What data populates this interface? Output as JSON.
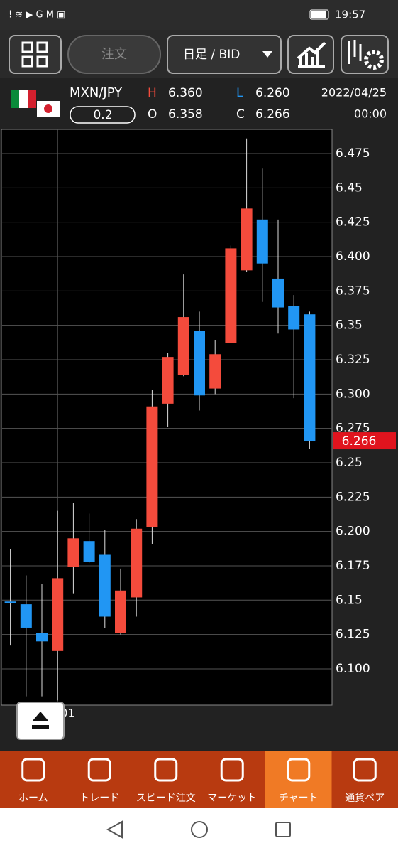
{
  "status_bar": {
    "time": "19:57"
  },
  "toolbar": {
    "order": "注文",
    "timeframe": "日足 / BID"
  },
  "header": {
    "pair": "MXN/JPY",
    "lot": "0.2",
    "high_label": "H",
    "high": "6.360",
    "low_label": "L",
    "low": "6.260",
    "open_label": "O",
    "open": "6.358",
    "close_label": "C",
    "close": "6.266",
    "date": "2022/04/25",
    "time": "00:00"
  },
  "chart_data": {
    "type": "candlestick",
    "categories": [
      null,
      null,
      null,
      "01",
      null,
      null,
      null,
      null,
      null,
      null,
      null,
      null,
      null,
      null,
      null,
      null,
      null,
      null,
      null,
      null
    ],
    "open": [
      6.149,
      6.147,
      6.126,
      6.113,
      6.174,
      6.193,
      6.183,
      6.126,
      6.152,
      6.203,
      6.293,
      6.314,
      6.346,
      6.304,
      6.337,
      6.39,
      6.427,
      6.384,
      6.364,
      6.358
    ],
    "high": [
      6.187,
      6.168,
      6.162,
      6.215,
      6.221,
      6.213,
      6.201,
      6.173,
      6.209,
      6.303,
      6.33,
      6.387,
      6.36,
      6.339,
      6.408,
      6.486,
      6.464,
      6.427,
      6.372,
      6.36
    ],
    "low": [
      6.117,
      6.08,
      6.08,
      6.077,
      6.155,
      6.177,
      6.13,
      6.125,
      6.138,
      6.191,
      6.276,
      6.313,
      6.288,
      6.3,
      6.337,
      6.389,
      6.367,
      6.344,
      6.297,
      6.26
    ],
    "close": [
      6.148,
      6.13,
      6.12,
      6.166,
      6.195,
      6.178,
      6.138,
      6.157,
      6.202,
      6.291,
      6.327,
      6.356,
      6.299,
      6.329,
      6.406,
      6.435,
      6.395,
      6.363,
      6.347,
      6.266
    ],
    "up_color": "#f44b3c",
    "down_color": "#2196f3",
    "ylim": [
      6.0736,
      6.4926
    ],
    "yticks": [
      {
        "value": 6.1,
        "label": "6.100"
      },
      6.125,
      6.15,
      6.175,
      {
        "value": 6.2,
        "label": "6.200"
      },
      6.225,
      6.25,
      6.275,
      {
        "value": 6.3,
        "label": "6.300"
      },
      6.325,
      6.35,
      6.375,
      {
        "value": 6.4,
        "label": "6.400"
      },
      6.425,
      6.45,
      6.475
    ],
    "grid": true,
    "last_price": 6.266,
    "last_price_color": "#e0141e"
  },
  "nav": {
    "items": [
      "ホーム",
      "トレード",
      "スピード注文",
      "マーケット",
      "チャート",
      "通貨ペア"
    ],
    "selected": 4
  }
}
